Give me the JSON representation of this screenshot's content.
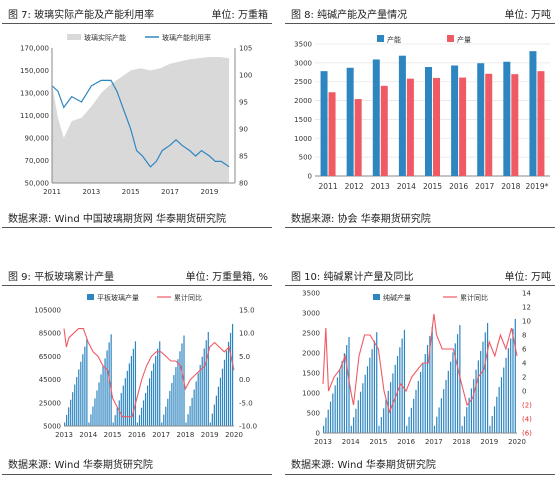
{
  "panels": [
    {
      "fig": "图 7:  玻璃实际产能及产能利用率",
      "unit": "单位:  万重箱",
      "source": "数据来源:  Wind  中国玻璃期货网  华泰期货研究院"
    },
    {
      "fig": "图 8:  纯碱产能及产量情况",
      "unit": "单位:  万吨",
      "source": "数据来源:  协会  华泰期货研究院"
    },
    {
      "fig": "图 9:    平板玻璃累计产量",
      "unit": "单位:  万重量箱, %",
      "source": "数据来源:  Wind  华泰期货研究院"
    },
    {
      "fig": "图 10:    纯碱累计产量及同比",
      "unit": "单位:  万吨",
      "source": "数据来源:  Wind  华泰期货研究院"
    }
  ],
  "chart_data": [
    {
      "type": "area",
      "legend": [
        "玻璃实际产能",
        "玻璃产能利用率"
      ],
      "legend_position": "top",
      "y_left": {
        "ylim": [
          50000,
          170000
        ],
        "ticks": [
          "170,000",
          "150,000",
          "130,000",
          "110,000",
          "90,000",
          "70,000",
          "50,000"
        ]
      },
      "y_right": {
        "ylim": [
          80,
          105
        ],
        "ticks": [
          "105",
          "100",
          "95",
          "90",
          "85",
          "80"
        ]
      },
      "x_ticks": [
        "2011",
        "2013",
        "2015",
        "2017",
        "2019"
      ],
      "series": [
        {
          "name": "玻璃实际产能",
          "axis": "left",
          "color": "#d9d9d9",
          "x": [
            2011.0,
            2011.3,
            2011.6,
            2012.0,
            2012.5,
            2013.0,
            2013.5,
            2014.0,
            2014.5,
            2015.0,
            2015.5,
            2016.0,
            2016.5,
            2017.0,
            2017.5,
            2018.0,
            2018.5,
            2019.0,
            2019.5,
            2020.0
          ],
          "values": [
            138000,
            108000,
            90000,
            105000,
            108000,
            118000,
            130000,
            138000,
            144000,
            150000,
            152000,
            150000,
            152000,
            156000,
            158000,
            160000,
            161000,
            162000,
            162000,
            161000
          ]
        },
        {
          "name": "玻璃产能利用率",
          "axis": "right",
          "color": "#2e86c1",
          "x": [
            2011.0,
            2011.3,
            2011.6,
            2012.0,
            2012.5,
            2013.0,
            2013.5,
            2014.0,
            2014.3,
            2014.6,
            2015.0,
            2015.3,
            2015.6,
            2016.0,
            2016.3,
            2016.6,
            2017.0,
            2017.3,
            2017.6,
            2018.0,
            2018.3,
            2018.6,
            2019.0,
            2019.3,
            2019.6,
            2020.0
          ],
          "values": [
            98,
            97,
            94,
            96,
            95,
            98,
            99,
            99,
            97,
            94,
            90,
            86,
            85,
            83,
            84,
            86,
            87,
            88,
            87,
            86,
            85,
            86,
            85,
            84,
            84,
            83
          ]
        }
      ]
    },
    {
      "type": "bar",
      "legend": [
        "产能",
        "产量"
      ],
      "legend_position": "top",
      "categories": [
        "2011",
        "2012",
        "2013",
        "2014",
        "2015",
        "2016",
        "2017",
        "2018",
        "2019*"
      ],
      "ylim": [
        0,
        3500
      ],
      "y_ticks": [
        "3500",
        "3000",
        "2500",
        "2000",
        "1500",
        "1000",
        "500",
        "0"
      ],
      "series": [
        {
          "name": "产能",
          "color": "#2e86c1",
          "values": [
            2780,
            2870,
            3090,
            3190,
            2890,
            2930,
            2990,
            3030,
            3310
          ]
        },
        {
          "name": "产量",
          "color": "#f05a64",
          "values": [
            2220,
            2040,
            2390,
            2580,
            2600,
            2610,
            2710,
            2700,
            2780
          ]
        }
      ]
    },
    {
      "type": "bar",
      "legend": [
        "平板玻璃产量",
        "累计同比"
      ],
      "legend_position": "top",
      "y_left": {
        "ylim": [
          5000,
          105000
        ],
        "ticks": [
          "105000",
          "85000",
          "65000",
          "45000",
          "25000",
          "5000"
        ]
      },
      "y_right": {
        "ylim": [
          -10,
          15
        ],
        "ticks": [
          "15.0",
          "10.0",
          "5.0",
          "0.0",
          "-5.0",
          "-10.0"
        ]
      },
      "x_ticks": [
        "2013",
        "2014",
        "2015",
        "2016",
        "2017",
        "2018",
        "2019",
        "2020"
      ],
      "series": [
        {
          "name": "平板玻璃产量",
          "axis": "left",
          "color": "#2e86c1",
          "cycle_start": [
            8000,
            8000,
            8000,
            8000,
            8000,
            8000,
            8000
          ],
          "cycle_end": [
            80000,
            84000,
            78000,
            78000,
            83000,
            86000,
            93000
          ]
        },
        {
          "name": "累计同比",
          "axis": "right",
          "color": "#f05a64",
          "x": [
            2013.0,
            2013.1,
            2013.2,
            2013.4,
            2013.6,
            2013.8,
            2014.0,
            2014.2,
            2014.4,
            2014.6,
            2014.8,
            2015.0,
            2015.2,
            2015.4,
            2015.6,
            2015.8,
            2016.0,
            2016.2,
            2016.4,
            2016.6,
            2016.8,
            2017.0,
            2017.2,
            2017.4,
            2017.6,
            2017.8,
            2018.0,
            2018.2,
            2018.4,
            2018.6,
            2018.8,
            2019.0,
            2019.2,
            2019.4,
            2019.6,
            2019.8,
            2020.0
          ],
          "values": [
            11,
            7,
            9,
            10,
            11,
            11,
            8,
            6,
            5,
            3,
            2,
            -4,
            -6,
            -8,
            -8,
            -8,
            -4,
            0,
            3,
            5,
            6,
            6,
            5,
            4,
            4,
            3,
            -2,
            0,
            1,
            2,
            3,
            7,
            8,
            7,
            6,
            7,
            2
          ]
        }
      ]
    },
    {
      "type": "bar",
      "legend": [
        "纯碱产量",
        "累计同比"
      ],
      "legend_position": "top",
      "y_left": {
        "ylim": [
          0,
          3500
        ],
        "ticks": [
          "3500",
          "3000",
          "2500",
          "2000",
          "1500",
          "1000",
          "500",
          "0"
        ]
      },
      "y_right": {
        "ylim": [
          -6,
          14
        ],
        "ticks": [
          "14",
          "12",
          "10",
          "8",
          "6",
          "4",
          "2",
          "0",
          "(2)",
          "(4)",
          "(6)"
        ]
      },
      "x_ticks": [
        "2013",
        "2014",
        "2015",
        "2016",
        "2017",
        "2018",
        "2019",
        "2020"
      ],
      "series": [
        {
          "name": "纯碱产量",
          "axis": "left",
          "color": "#2e86c1",
          "cycle_start": [
            180,
            180,
            180,
            180,
            180,
            180,
            180,
            180
          ],
          "cycle_end": [
            2400,
            2520,
            2580,
            2650,
            2700,
            2750,
            2850,
            2950
          ]
        },
        {
          "name": "累计同比",
          "axis": "right",
          "color": "#f05a64",
          "x": [
            2013.0,
            2013.1,
            2013.2,
            2013.4,
            2013.6,
            2013.8,
            2014.0,
            2014.1,
            2014.3,
            2014.5,
            2014.7,
            2015.0,
            2015.2,
            2015.4,
            2015.6,
            2015.8,
            2016.0,
            2016.2,
            2016.4,
            2016.6,
            2016.8,
            2017.0,
            2017.1,
            2017.3,
            2017.5,
            2017.7,
            2018.0,
            2018.2,
            2018.4,
            2018.6,
            2018.8,
            2019.0,
            2019.2,
            2019.4,
            2019.6,
            2019.8,
            2020.0
          ],
          "values": [
            1,
            9,
            0,
            2,
            3,
            5,
            0,
            -2,
            5,
            8,
            8,
            6,
            0,
            -3,
            -1,
            1,
            0,
            2,
            3,
            4,
            4,
            11,
            8,
            6,
            6,
            6,
            1,
            -2,
            -1,
            2,
            3,
            7,
            5,
            8,
            6,
            9,
            5
          ]
        }
      ]
    }
  ]
}
